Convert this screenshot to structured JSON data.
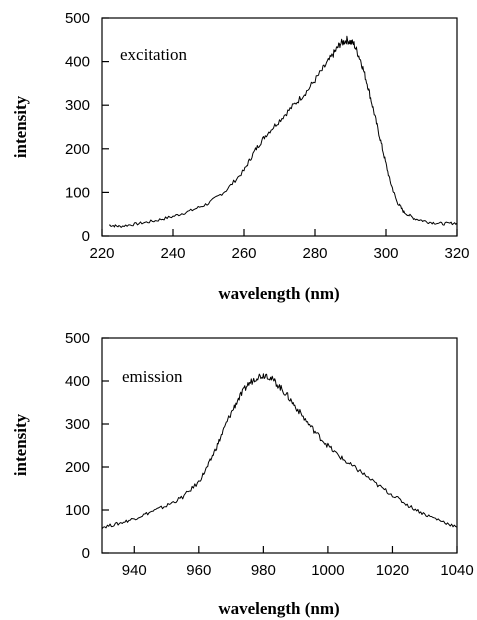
{
  "chart_data": [
    {
      "type": "line",
      "xlabel": "wavelength (nm)",
      "ylabel": "intensity",
      "annotation": "excitation",
      "xlim": [
        220,
        320
      ],
      "ylim": [
        0,
        500
      ],
      "xticks": [
        220,
        240,
        260,
        280,
        300,
        320
      ],
      "yticks": [
        0,
        100,
        200,
        300,
        400,
        500
      ],
      "series": [
        {
          "x": [
            222,
            225,
            230,
            235,
            240,
            245,
            250,
            255,
            260,
            263,
            266,
            270,
            274,
            278,
            282,
            285,
            287,
            289,
            291,
            293,
            295,
            297,
            299,
            301,
            303,
            305,
            308,
            312,
            316,
            320
          ],
          "y": [
            25,
            22,
            28,
            35,
            45,
            58,
            75,
            105,
            150,
            195,
            230,
            265,
            300,
            335,
            380,
            415,
            440,
            450,
            440,
            400,
            340,
            270,
            200,
            130,
            80,
            55,
            40,
            32,
            28,
            30
          ]
        }
      ]
    },
    {
      "type": "line",
      "xlabel": "wavelength (nm)",
      "ylabel": "intensity",
      "annotation": "emission",
      "xlim": [
        930,
        1040
      ],
      "ylim": [
        0,
        500
      ],
      "xticks": [
        940,
        960,
        980,
        1000,
        1020,
        1040
      ],
      "yticks": [
        0,
        100,
        200,
        300,
        400,
        500
      ],
      "series": [
        {
          "x": [
            930,
            935,
            940,
            945,
            950,
            955,
            960,
            963,
            966,
            969,
            972,
            975,
            978,
            981,
            984,
            987,
            990,
            994,
            998,
            1002,
            1006,
            1010,
            1015,
            1020,
            1025,
            1030,
            1035,
            1040
          ],
          "y": [
            60,
            68,
            80,
            95,
            110,
            130,
            165,
            205,
            255,
            310,
            355,
            390,
            410,
            415,
            395,
            370,
            340,
            300,
            265,
            235,
            210,
            190,
            160,
            135,
            110,
            90,
            75,
            60
          ]
        }
      ]
    }
  ]
}
